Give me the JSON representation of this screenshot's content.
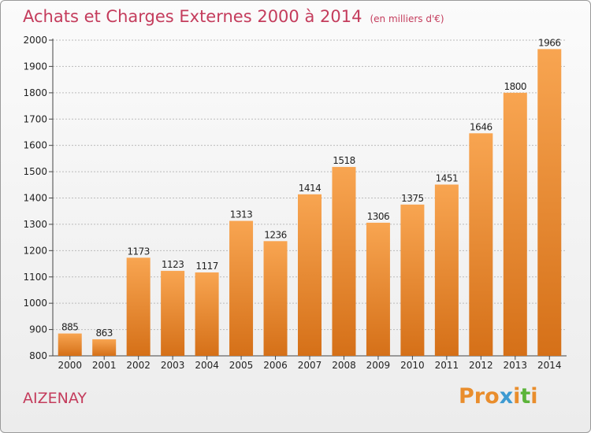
{
  "header": {
    "title": "Achats et Charges Externes 2000 à 2014",
    "unit": "(en milliers d'€)"
  },
  "footer": {
    "commune": "AIZENAY",
    "logo": "Proxiti"
  },
  "colors": {
    "title": "#c43c5c",
    "bar_light": "#f8a551",
    "bar_dark": "#d57018",
    "grid": "#bbbbbb",
    "logo_letters": [
      "#e98d2c",
      "#e98d2c",
      "#e98d2c",
      "#3d9ad1",
      "#e98d2c",
      "#5cb43a",
      "#e98d2c"
    ]
  },
  "chart_data": {
    "type": "bar",
    "title": "Achats et Charges Externes 2000 à 2014",
    "xlabel": "",
    "ylabel": "",
    "categories": [
      "2000",
      "2001",
      "2002",
      "2003",
      "2004",
      "2005",
      "2006",
      "2007",
      "2008",
      "2009",
      "2010",
      "2011",
      "2012",
      "2013",
      "2014"
    ],
    "values": [
      885,
      863,
      1173,
      1123,
      1117,
      1313,
      1236,
      1414,
      1518,
      1306,
      1375,
      1451,
      1646,
      1800,
      1966
    ],
    "ylim": [
      800,
      2000
    ],
    "yticks": [
      800,
      900,
      1000,
      1100,
      1200,
      1300,
      1400,
      1500,
      1600,
      1700,
      1800,
      1900,
      2000
    ],
    "grid": true,
    "legend": "none"
  }
}
